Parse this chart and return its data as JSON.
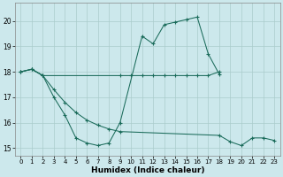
{
  "xlabel": "Humidex (Indice chaleur)",
  "background_color": "#cce8ec",
  "grid_color": "#aacccc",
  "line_color": "#1a6b5a",
  "ylim": [
    14.7,
    20.7
  ],
  "yticks": [
    15,
    16,
    17,
    18,
    19,
    20
  ],
  "xlim": [
    -0.5,
    23.5
  ],
  "xticks": [
    0,
    1,
    2,
    3,
    4,
    5,
    6,
    7,
    8,
    9,
    10,
    11,
    12,
    13,
    14,
    15,
    16,
    17,
    18,
    19,
    20,
    21,
    22,
    23
  ],
  "spiky_x": [
    0,
    1,
    2,
    3,
    4,
    5,
    6,
    7,
    8,
    9,
    11,
    12,
    13,
    14,
    15,
    16,
    17,
    18
  ],
  "spiky_y": [
    18.0,
    18.1,
    17.85,
    17.0,
    16.3,
    15.4,
    15.2,
    15.1,
    15.2,
    16.0,
    19.4,
    19.1,
    19.85,
    19.95,
    20.05,
    20.15,
    18.7,
    17.9
  ],
  "flat_x": [
    0,
    1,
    2,
    9,
    10,
    11,
    12,
    13,
    14,
    15,
    16,
    17,
    18
  ],
  "flat_y": [
    18.0,
    18.1,
    17.85,
    17.85,
    17.85,
    17.85,
    17.85,
    17.85,
    17.85,
    17.85,
    17.85,
    17.85,
    18.0
  ],
  "desc_x": [
    0,
    1,
    2,
    3,
    4,
    5,
    6,
    7,
    8,
    9,
    18,
    19,
    20,
    21,
    22,
    23
  ],
  "desc_y": [
    18.0,
    18.1,
    17.85,
    17.3,
    16.8,
    16.4,
    16.1,
    15.9,
    15.75,
    15.65,
    15.5,
    15.25,
    15.1,
    15.4,
    15.4,
    15.3
  ]
}
